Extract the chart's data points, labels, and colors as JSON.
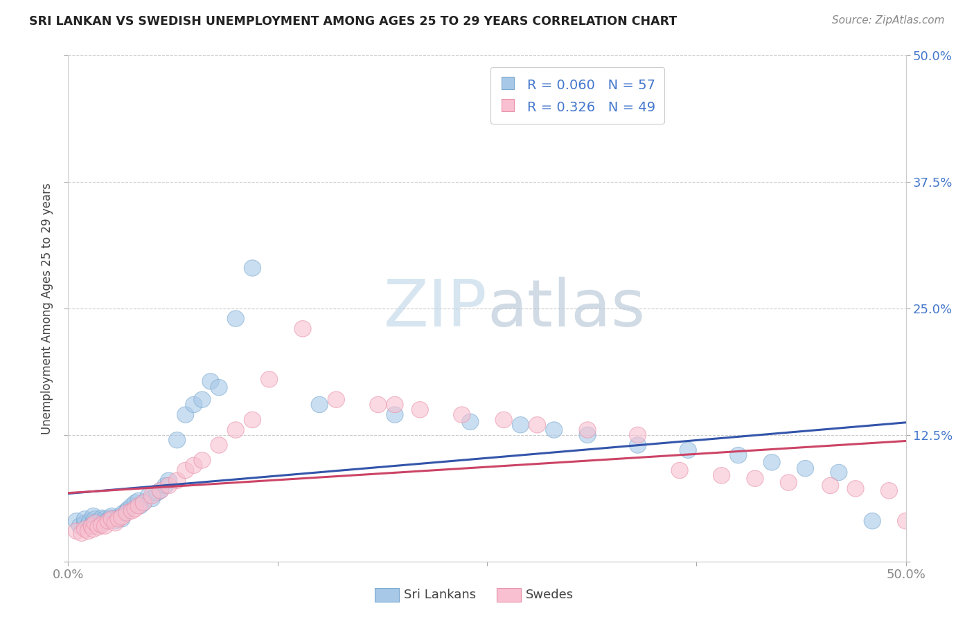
{
  "title": "SRI LANKAN VS SWEDISH UNEMPLOYMENT AMONG AGES 25 TO 29 YEARS CORRELATION CHART",
  "source": "Source: ZipAtlas.com",
  "ylabel": "Unemployment Among Ages 25 to 29 years",
  "xlim": [
    0.0,
    0.5
  ],
  "ylim": [
    0.0,
    0.5
  ],
  "sri_lankan_color": "#a8c8e8",
  "sri_lankan_edge_color": "#7aaad0",
  "swede_color": "#f8c0d0",
  "swede_edge_color": "#e890a8",
  "sri_lankan_line_color": "#3355aa",
  "swede_line_color": "#cc4466",
  "watermark_color": "#d8e8f0",
  "background_color": "#ffffff",
  "grid_color": "#cccccc",
  "title_color": "#222222",
  "source_color": "#888888",
  "ylabel_color": "#444444",
  "tick_color": "#888888",
  "right_tick_color": "#4477cc",
  "legend_text_color": "#4477cc",
  "sri_lankans_x": [
    0.005,
    0.007,
    0.01,
    0.01,
    0.012,
    0.013,
    0.015,
    0.015,
    0.016,
    0.017,
    0.018,
    0.019,
    0.02,
    0.02,
    0.022,
    0.023,
    0.025,
    0.026,
    0.027,
    0.028,
    0.03,
    0.032,
    0.033,
    0.035,
    0.036,
    0.038,
    0.04,
    0.042,
    0.043,
    0.045,
    0.048,
    0.05,
    0.053,
    0.055,
    0.058,
    0.06,
    0.065,
    0.07,
    0.075,
    0.08,
    0.085,
    0.09,
    0.1,
    0.11,
    0.15,
    0.195,
    0.24,
    0.27,
    0.29,
    0.31,
    0.34,
    0.37,
    0.4,
    0.42,
    0.44,
    0.46,
    0.48
  ],
  "sri_lankans_y": [
    0.04,
    0.035,
    0.038,
    0.042,
    0.036,
    0.04,
    0.045,
    0.038,
    0.042,
    0.037,
    0.04,
    0.036,
    0.038,
    0.043,
    0.042,
    0.04,
    0.043,
    0.045,
    0.042,
    0.04,
    0.044,
    0.042,
    0.048,
    0.05,
    0.052,
    0.055,
    0.058,
    0.06,
    0.055,
    0.058,
    0.065,
    0.062,
    0.068,
    0.07,
    0.075,
    0.08,
    0.12,
    0.145,
    0.155,
    0.16,
    0.178,
    0.172,
    0.24,
    0.29,
    0.155,
    0.145,
    0.138,
    0.135,
    0.13,
    0.125,
    0.115,
    0.11,
    0.105,
    0.098,
    0.092,
    0.088,
    0.04
  ],
  "swedes_x": [
    0.005,
    0.008,
    0.01,
    0.012,
    0.014,
    0.015,
    0.016,
    0.018,
    0.02,
    0.022,
    0.024,
    0.026,
    0.028,
    0.03,
    0.032,
    0.035,
    0.038,
    0.04,
    0.042,
    0.045,
    0.05,
    0.055,
    0.06,
    0.065,
    0.07,
    0.075,
    0.08,
    0.09,
    0.1,
    0.11,
    0.12,
    0.14,
    0.16,
    0.185,
    0.21,
    0.235,
    0.26,
    0.28,
    0.31,
    0.34,
    0.365,
    0.39,
    0.41,
    0.43,
    0.455,
    0.47,
    0.49,
    0.195,
    0.5
  ],
  "swedes_y": [
    0.03,
    0.028,
    0.032,
    0.03,
    0.035,
    0.032,
    0.038,
    0.034,
    0.036,
    0.035,
    0.04,
    0.042,
    0.038,
    0.042,
    0.044,
    0.048,
    0.05,
    0.052,
    0.055,
    0.058,
    0.065,
    0.07,
    0.075,
    0.08,
    0.09,
    0.095,
    0.1,
    0.115,
    0.13,
    0.14,
    0.18,
    0.23,
    0.16,
    0.155,
    0.15,
    0.145,
    0.14,
    0.135,
    0.13,
    0.125,
    0.09,
    0.085,
    0.082,
    0.078,
    0.075,
    0.072,
    0.07,
    0.155,
    0.04
  ]
}
